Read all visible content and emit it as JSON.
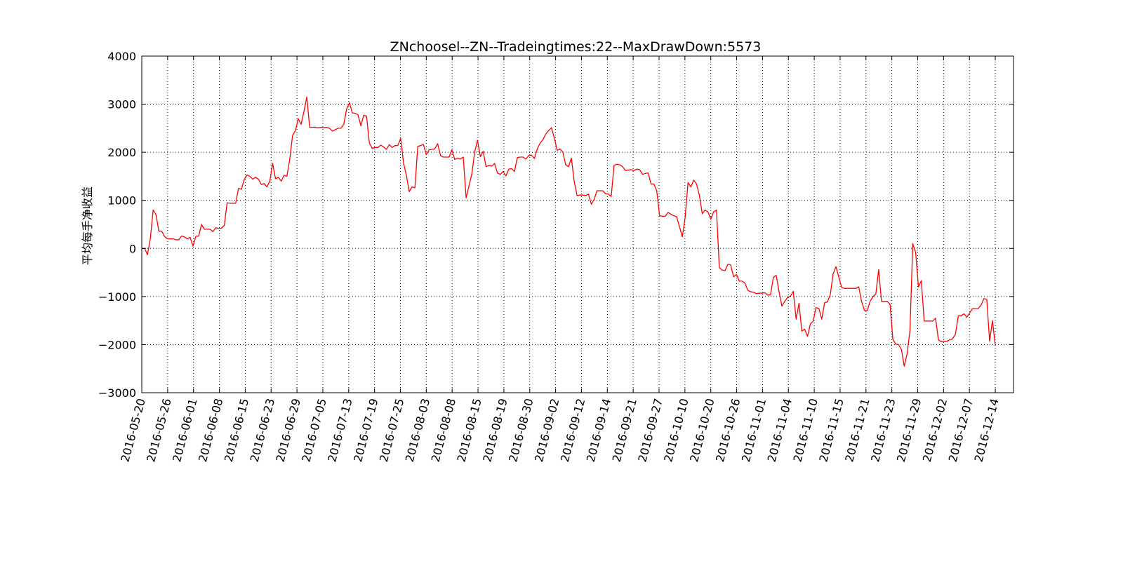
{
  "chart_data": {
    "type": "line",
    "title": "ZNchoosel--ZN--Tradeingtimes:22--MaxDrawDown:5573",
    "ylabel": "平均每手净收益",
    "xlabel": "",
    "ylim": [
      -3000,
      4000
    ],
    "yticks": [
      -3000,
      -2000,
      -1000,
      0,
      1000,
      2000,
      3000,
      4000
    ],
    "ytick_labels": [
      "−3000",
      "−2000",
      "−1000",
      "0",
      "1000",
      "2000",
      "3000",
      "4000"
    ],
    "xtick_labels": [
      "2016-05-20",
      "2016-05-26",
      "2016-06-01",
      "2016-06-08",
      "2016-06-15",
      "2016-06-23",
      "2016-06-29",
      "2016-07-05",
      "2016-07-13",
      "2016-07-19",
      "2016-07-25",
      "2016-08-03",
      "2016-08-08",
      "2016-08-15",
      "2016-08-19",
      "2016-08-30",
      "2016-09-02",
      "2016-09-12",
      "2016-09-14",
      "2016-09-21",
      "2016-09-27",
      "2016-10-10",
      "2016-10-20",
      "2016-10-26",
      "2016-11-01",
      "2016-11-04",
      "2016-11-10",
      "2016-11-15",
      "2016-11-21",
      "2016-11-23",
      "2016-11-29",
      "2016-12-02",
      "2016-12-07",
      "2016-12-14"
    ],
    "grid": true,
    "series": [
      {
        "color": "#ff0000",
        "values": [
          0,
          0,
          -130,
          200,
          800,
          700,
          360,
          360,
          250,
          200,
          200,
          200,
          180,
          180,
          260,
          240,
          200,
          230,
          50,
          250,
          260,
          500,
          400,
          400,
          400,
          350,
          430,
          420,
          420,
          480,
          950,
          940,
          940,
          940,
          1250,
          1230,
          1430,
          1530,
          1500,
          1440,
          1480,
          1440,
          1330,
          1350,
          1280,
          1400,
          1770,
          1450,
          1480,
          1400,
          1520,
          1500,
          1850,
          2350,
          2450,
          2700,
          2580,
          2850,
          3150,
          2520,
          2520,
          2520,
          2510,
          2520,
          2510,
          2520,
          2500,
          2440,
          2470,
          2500,
          2500,
          2580,
          2900,
          3030,
          2820,
          2810,
          2780,
          2550,
          2770,
          2750,
          2190,
          2080,
          2100,
          2100,
          2150,
          2110,
          2060,
          2160,
          2100,
          2140,
          2140,
          2290,
          1780,
          1520,
          1180,
          1280,
          1260,
          2120,
          2140,
          2160,
          1950,
          2050,
          2060,
          2070,
          2180,
          1930,
          1900,
          1900,
          1900,
          2050,
          1850,
          1880,
          1860,
          1900,
          1050,
          1300,
          1550,
          2000,
          2250,
          1910,
          2020,
          1700,
          1730,
          1710,
          1770,
          1570,
          1540,
          1600,
          1510,
          1650,
          1660,
          1600,
          1890,
          1900,
          1900,
          1860,
          1930,
          1940,
          1870,
          2070,
          2190,
          2260,
          2380,
          2450,
          2510,
          2300,
          2040,
          2070,
          2000,
          1740,
          1700,
          1880,
          1390,
          1100,
          1110,
          1110,
          1100,
          1130,
          920,
          1020,
          1200,
          1200,
          1200,
          1140,
          1130,
          1080,
          1730,
          1750,
          1740,
          1700,
          1620,
          1630,
          1640,
          1620,
          1650,
          1640,
          1540,
          1560,
          1570,
          1340,
          1340,
          1200,
          680,
          670,
          670,
          750,
          710,
          680,
          660,
          450,
          240,
          650,
          1370,
          1280,
          1420,
          1340,
          1100,
          720,
          800,
          760,
          610,
          760,
          800,
          -400,
          -450,
          -460,
          -330,
          -340,
          -590,
          -540,
          -680,
          -680,
          -720,
          -870,
          -900,
          -910,
          -940,
          -930,
          -930,
          -920,
          -970,
          -960,
          -600,
          -560,
          -900,
          -1200,
          -1100,
          -1020,
          -990,
          -890,
          -1470,
          -1140,
          -1720,
          -1680,
          -1830,
          -1570,
          -1510,
          -1230,
          -1250,
          -1470,
          -1130,
          -1110,
          -960,
          -530,
          -380,
          -600,
          -810,
          -830,
          -830,
          -830,
          -830,
          -830,
          -800,
          -1100,
          -1290,
          -1290,
          -1100,
          -1000,
          -950,
          -440,
          -1100,
          -1100,
          -1100,
          -1160,
          -1890,
          -1990,
          -2000,
          -2100,
          -2450,
          -2190,
          -1710,
          100,
          -80,
          -800,
          -670,
          -1510,
          -1510,
          -1510,
          -1510,
          -1450,
          -1900,
          -1940,
          -1930,
          -1930,
          -1900,
          -1880,
          -1780,
          -1400,
          -1400,
          -1360,
          -1430,
          -1340,
          -1250,
          -1250,
          -1250,
          -1180,
          -1040,
          -1060,
          -1930,
          -1500,
          -2020
        ]
      }
    ]
  }
}
